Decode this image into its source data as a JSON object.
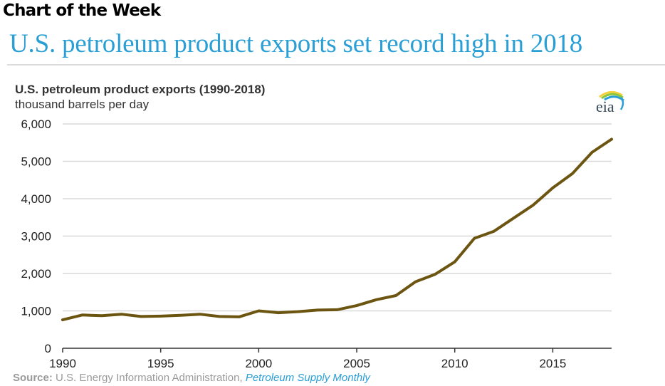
{
  "header": {
    "kicker": "Chart of the Week",
    "headline": "U.S. petroleum product exports set record high in 2018"
  },
  "logo": {
    "text": "eia",
    "icon": "eia-logo-icon"
  },
  "colors": {
    "headline": "#2a9fd6",
    "series_line": "#6b5510",
    "gridline": "#d9d9d9",
    "axis": "#333333",
    "source_link": "#2a9fd6"
  },
  "source": {
    "label": "Source:",
    "text": "U.S. Energy Information Administration,",
    "publication": "Petroleum Supply Monthly"
  },
  "chart_data": {
    "type": "line",
    "title": "U.S. petroleum product exports (1990-2018)",
    "subtitle": "thousand barrels per day",
    "xlabel": "",
    "ylabel": "thousand barrels per day",
    "xlim": [
      1990,
      2018
    ],
    "ylim": [
      0,
      6000
    ],
    "grid": true,
    "legend": "none",
    "y_ticks": [
      0,
      1000,
      2000,
      3000,
      4000,
      5000,
      6000
    ],
    "y_tick_labels": [
      "0",
      "1,000",
      "2,000",
      "3,000",
      "4,000",
      "5,000",
      "6,000"
    ],
    "x_ticks": [
      1990,
      1995,
      2000,
      2005,
      2010,
      2015
    ],
    "x_tick_labels": [
      "1990",
      "1995",
      "2000",
      "2005",
      "2010",
      "2015"
    ],
    "series": [
      {
        "name": "U.S. petroleum product exports",
        "x": [
          1990,
          1991,
          1992,
          1993,
          1994,
          1995,
          1996,
          1997,
          1998,
          1999,
          2000,
          2001,
          2002,
          2003,
          2004,
          2005,
          2006,
          2007,
          2008,
          2009,
          2010,
          2011,
          2012,
          2013,
          2014,
          2015,
          2016,
          2017,
          2018
        ],
        "values": [
          760,
          890,
          870,
          910,
          850,
          860,
          880,
          910,
          850,
          840,
          1000,
          950,
          980,
          1020,
          1030,
          1140,
          1300,
          1410,
          1780,
          1980,
          2310,
          2940,
          3130,
          3480,
          3830,
          4290,
          4670,
          5240,
          5590
        ]
      }
    ]
  }
}
